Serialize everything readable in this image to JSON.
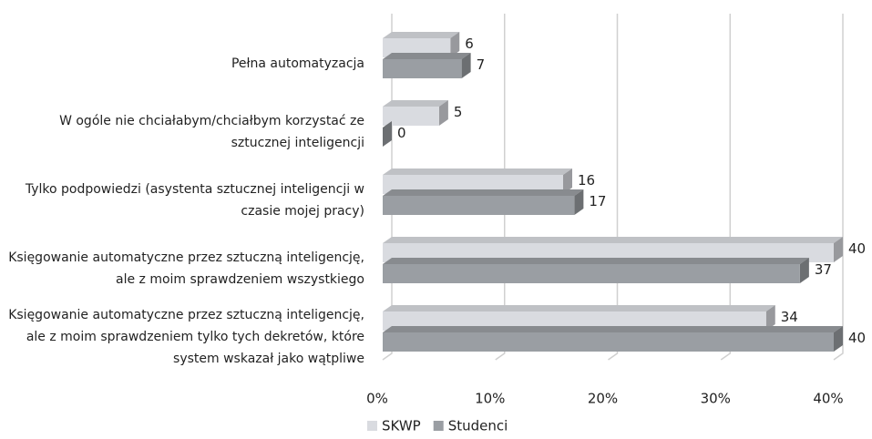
{
  "chart_data": {
    "type": "bar",
    "orientation": "horizontal",
    "categories": [
      "Pełna automatyzacja",
      "W ogóle nie chciałabym/chciałbym korzystać ze sztucznej inteligencji",
      "Tylko podpowiedzi (asystenta sztucznej inteligencji w czasie mojej pracy)",
      "Księgowanie automatyczne przez sztuczną inteligencję, ale z moim sprawdzeniem wszystkiego",
      "Księgowanie automatyczne przez sztuczną inteligencję, ale z moim sprawdzeniem tylko tych dekretów, które system wskazał jako wątpliwe"
    ],
    "series": [
      {
        "name": "SKWP",
        "color": "#d9dbe0",
        "values": [
          6,
          5,
          16,
          40,
          34
        ]
      },
      {
        "name": "Studenci",
        "color": "#9a9ea3",
        "values": [
          7,
          0,
          17,
          37,
          40
        ]
      }
    ],
    "xlim": [
      0,
      40
    ],
    "xticks": [
      {
        "value": 0,
        "label": "0%"
      },
      {
        "value": 10,
        "label": "10%"
      },
      {
        "value": 20,
        "label": "20%"
      },
      {
        "value": 30,
        "label": "30%"
      },
      {
        "value": 40,
        "label": "40%"
      }
    ],
    "grid": true,
    "legend": "bottom"
  }
}
